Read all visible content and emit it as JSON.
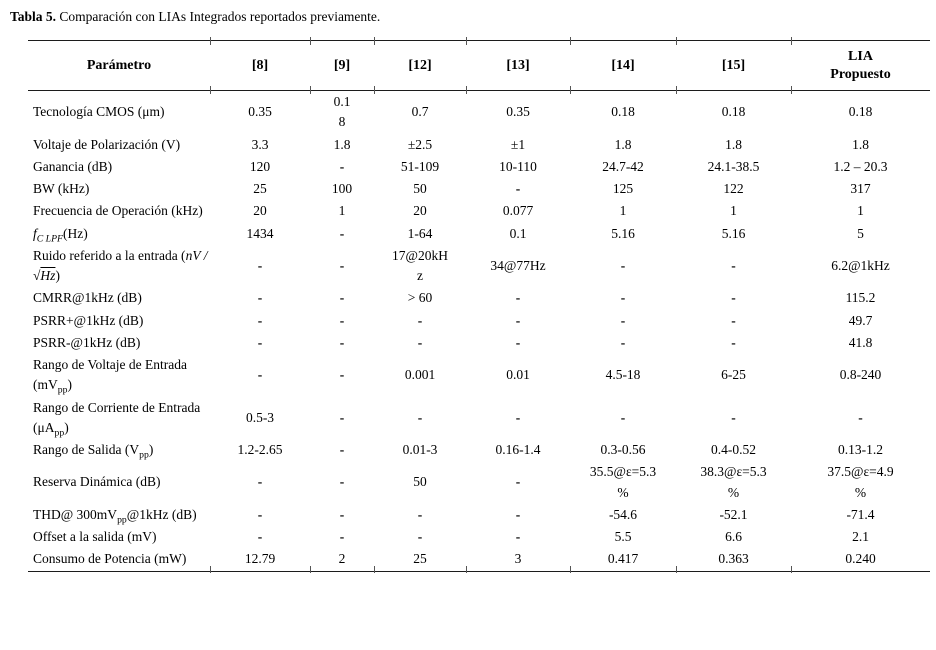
{
  "caption": {
    "label": "Tabla 5.",
    "text": " Comparación con LIAs Integrados reportados previamente."
  },
  "table": {
    "columns": [
      "Parámetro",
      "[8]",
      "[9]",
      "[12]",
      "[13]",
      "[14]",
      "[15]",
      "LIA\nPropuesto"
    ],
    "rows": [
      {
        "param": "Tecnología CMOS (μm)",
        "values": [
          "0.35",
          "0.1\n8",
          "0.7",
          "0.35",
          "0.18",
          "0.18",
          "0.18"
        ]
      },
      {
        "param": "Voltaje de Polarización (V)",
        "values": [
          "3.3",
          "1.8",
          "±2.5",
          "±1",
          "1.8",
          "1.8",
          "1.8"
        ]
      },
      {
        "param": "Ganancia (dB)",
        "values": [
          "120",
          "-",
          "51-109",
          "10-110",
          "24.7-42",
          "24.1-38.5",
          "1.2 – 20.3"
        ]
      },
      {
        "param": "BW (kHz)",
        "values": [
          "25",
          "100",
          "50",
          "-",
          "125",
          "122",
          "317"
        ]
      },
      {
        "param": "Frecuencia de Operación (kHz)",
        "values": [
          "20",
          "1",
          "20",
          "0.077",
          "1",
          "1",
          "1"
        ]
      },
      {
        "param": "<i>f<sub>C LPF</sub></i>(Hz)",
        "values": [
          "1434",
          "-",
          "1-64",
          "0.1",
          "5.16",
          "5.16",
          "5"
        ]
      },
      {
        "param": "Ruido referido a la entrada (<i>nV / √<span class='ol'>Hz</span></i>)",
        "values": [
          "-",
          "-",
          "17@20kH\nz",
          "34@77Hz",
          "-",
          "-",
          "6.2@1kHz"
        ]
      },
      {
        "param": "CMRR@1kHz (dB)",
        "values": [
          "-",
          "-",
          "> 60",
          "-",
          "-",
          "-",
          "115.2"
        ]
      },
      {
        "param": "PSRR+@1kHz (dB)",
        "values": [
          "-",
          "-",
          "-",
          "-",
          "-",
          "-",
          "49.7"
        ]
      },
      {
        "param": "PSRR-@1kHz (dB)",
        "values": [
          "-",
          "-",
          "-",
          "-",
          "-",
          "-",
          "41.8"
        ]
      },
      {
        "param": "Rango de Voltaje de Entrada (mV<sub>pp</sub>)",
        "values": [
          "-",
          "-",
          "0.001",
          "0.01",
          "4.5-18",
          "6-25",
          "0.8-240"
        ]
      },
      {
        "param": "Rango de Corriente de Entrada (μA<sub>pp</sub>)",
        "values": [
          "0.5-3",
          "-",
          "-",
          "-",
          "-",
          "-",
          "-"
        ]
      },
      {
        "param": "Rango de Salida (V<sub>pp</sub>)",
        "values": [
          "1.2-2.65",
          "-",
          "0.01-3",
          "0.16-1.4",
          "0.3-0.56",
          "0.4-0.52",
          "0.13-1.2"
        ]
      },
      {
        "param": "Reserva Dinámica (dB)",
        "values": [
          "-",
          "-",
          "50",
          "-",
          "35.5@ε=5.3\n%",
          "38.3@ε=5.3\n%",
          "37.5@ε=4.9\n%"
        ]
      },
      {
        "param": "THD@ 300mV<sub>pp</sub>@1kHz (dB)",
        "values": [
          "-",
          "-",
          "-",
          "-",
          "-54.6",
          "-52.1",
          "-71.4"
        ]
      },
      {
        "param": "Offset a la salida (mV)",
        "values": [
          "-",
          "-",
          "-",
          "-",
          "5.5",
          "6.6",
          "2.1"
        ]
      },
      {
        "param": "Consumo de Potencia (mW)",
        "values": [
          "12.79",
          "2",
          "25",
          "3",
          "0.417",
          "0.363",
          "0.240"
        ]
      }
    ]
  }
}
